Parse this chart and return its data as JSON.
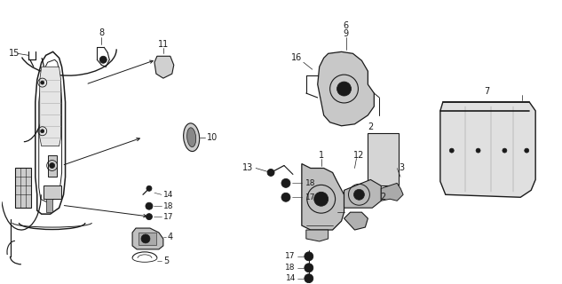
{
  "bg_color": "#ffffff",
  "lc": "#1a1a1a",
  "font_size": 6.5,
  "fig_w": 6.33,
  "fig_h": 3.2,
  "dpi": 100
}
